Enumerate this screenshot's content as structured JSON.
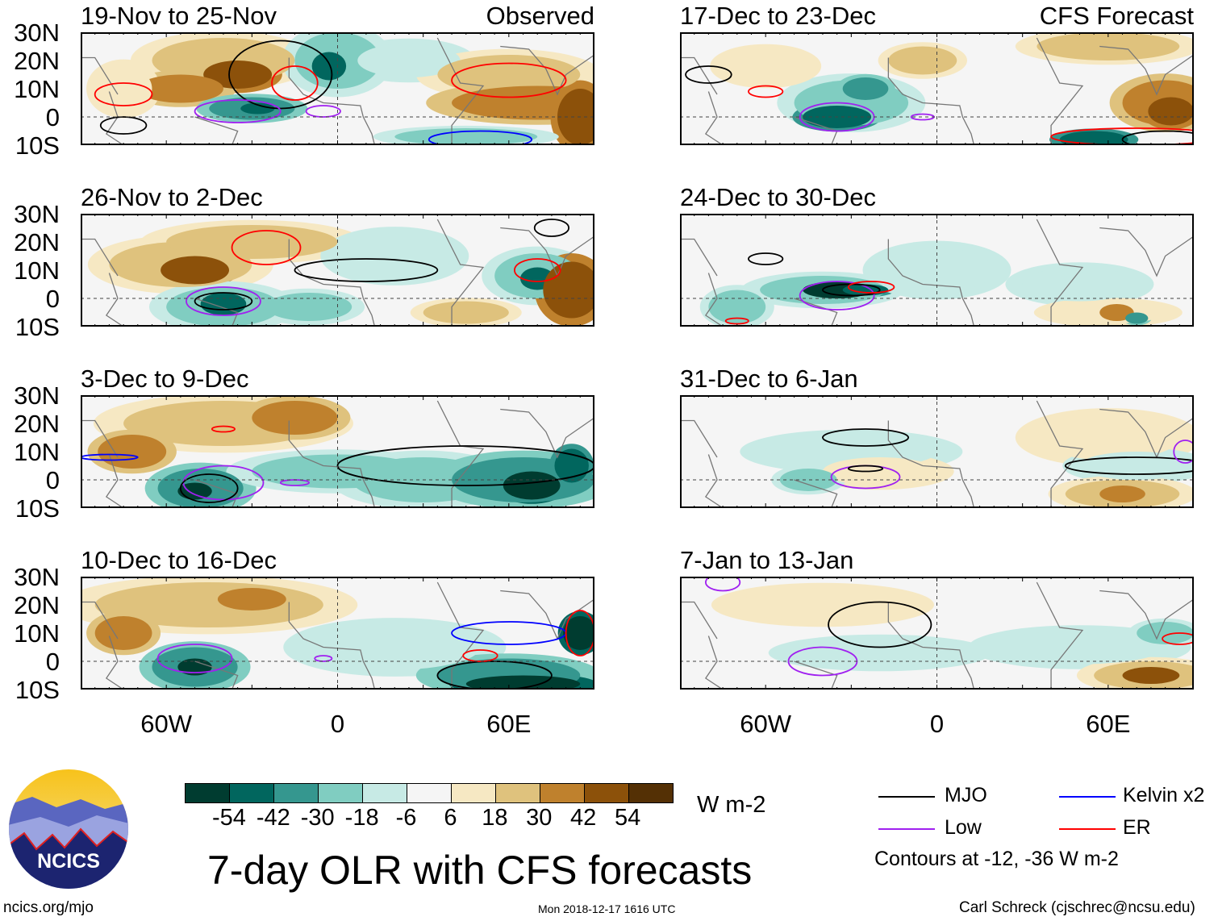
{
  "panels": [
    {
      "title": "19-Nov to 25-Nov",
      "tag": "Observed"
    },
    {
      "title": "17-Dec to 23-Dec",
      "tag": "CFS Forecast"
    },
    {
      "title": "26-Nov to 2-Dec"
    },
    {
      "title": "24-Dec to 30-Dec"
    },
    {
      "title": "3-Dec to 9-Dec"
    },
    {
      "title": "31-Dec to 6-Jan"
    },
    {
      "title": "10-Dec to 16-Dec"
    },
    {
      "title": "7-Jan to 13-Jan"
    }
  ],
  "lat_labels": [
    "30N",
    "20N",
    "10N",
    "0",
    "10S"
  ],
  "lon_labels": [
    "60W",
    "0",
    "60E"
  ],
  "colorbar": {
    "colors": [
      "#003c30",
      "#01665e",
      "#35978f",
      "#80cdc1",
      "#c7eae5",
      "#f5f5f5",
      "#f6e8c3",
      "#dfc27d",
      "#bf812d",
      "#8c510a",
      "#543005"
    ],
    "labels": [
      "-54",
      "-42",
      "-30",
      "-18",
      "-6",
      "6",
      "18",
      "30",
      "42",
      "54"
    ],
    "units": "W m-2"
  },
  "legend": {
    "items": [
      {
        "label": "MJO",
        "color": "#000000"
      },
      {
        "label": "Kelvin x2",
        "color": "#0000ff"
      },
      {
        "label": "Low",
        "color": "#a020f0"
      },
      {
        "label": "ER",
        "color": "#ff0000"
      }
    ],
    "note": "Contours at -12, -36 W m-2"
  },
  "title": "7-day OLR with CFS forecasts",
  "timestamp": "Mon 2018-12-17 1616 UTC",
  "logo_text": "NCICS",
  "footer_left": "ncics.org/mjo",
  "footer_right": "Carl Schreck (cjschrec@ncsu.edu)"
}
